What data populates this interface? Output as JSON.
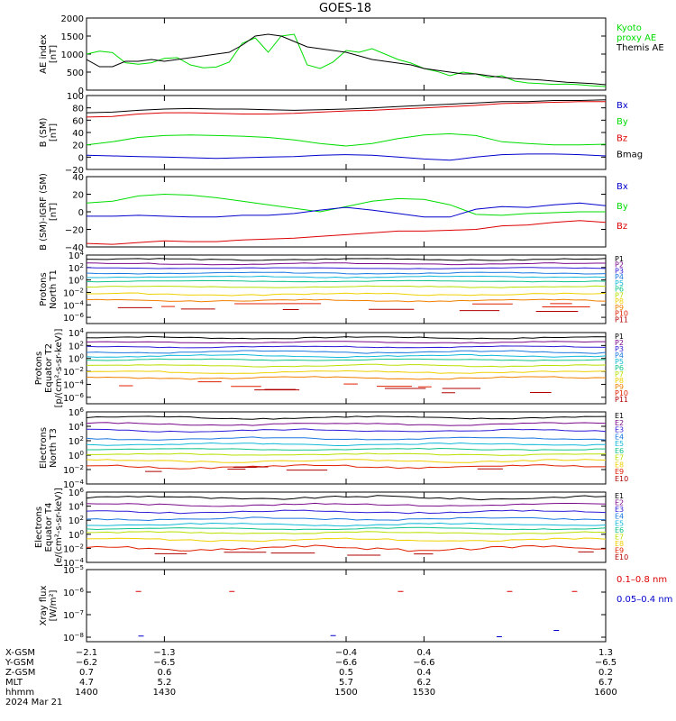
{
  "title": "GOES-18",
  "colors": {
    "black": "#000000",
    "green": "#00dd00",
    "red": "#dd0000",
    "blue": "#0000cc",
    "p1": "#000000",
    "p2": "#7a0a8a",
    "p3": "#2c1ad6",
    "p4": "#1a78e0",
    "p5": "#10b9d9",
    "p6": "#10c48a",
    "p7": "#b8e000",
    "p8": "#f0d000",
    "p9": "#f08000",
    "p10": "#e02000",
    "p11": "#b00000"
  },
  "chart_data": [
    {
      "type": "line",
      "panel": "ae",
      "ylabel": "AE index\n[nT]",
      "ylim": [
        0,
        2000
      ],
      "yticks": [
        "0",
        "500",
        "1000",
        "1500",
        "2000"
      ],
      "yticks_values": [
        0,
        500,
        1000,
        1500,
        2000
      ],
      "legend": [
        {
          "text": "Kyoto\nproxy AE",
          "color": "green"
        },
        {
          "text": "Themis AE",
          "color": "black"
        }
      ],
      "series": [
        {
          "name": "Kyoto proxy AE",
          "color": "green",
          "x": [
            1400,
            1405,
            1410,
            1415,
            1420,
            1425,
            1430,
            1435,
            1440,
            1445,
            1450,
            1455,
            1460,
            1465,
            1470,
            1475,
            1480,
            1485,
            1490,
            1495,
            1500,
            1505,
            1510,
            1515,
            1520,
            1525,
            1530,
            1535,
            1540,
            1545,
            1550,
            1555,
            1560,
            1565,
            1570,
            1575,
            1580,
            1585,
            1590,
            1595,
            1600
          ],
          "y": [
            1000,
            1080,
            1040,
            760,
            720,
            760,
            880,
            900,
            700,
            620,
            640,
            780,
            1300,
            1450,
            1050,
            1500,
            1550,
            700,
            600,
            780,
            1100,
            1050,
            1150,
            1000,
            850,
            750,
            600,
            520,
            400,
            500,
            450,
            350,
            400,
            250,
            200,
            180,
            160,
            170,
            150,
            120,
            100
          ]
        },
        {
          "name": "Themis AE",
          "color": "black",
          "x": [
            1400,
            1405,
            1410,
            1415,
            1420,
            1425,
            1430,
            1435,
            1440,
            1445,
            1450,
            1455,
            1460,
            1465,
            1470,
            1475,
            1480,
            1485,
            1490,
            1495,
            1500,
            1505,
            1510,
            1515,
            1520,
            1525,
            1530,
            1535,
            1540,
            1545,
            1550,
            1555,
            1560,
            1565,
            1570,
            1575,
            1580,
            1585,
            1590,
            1595,
            1600
          ],
          "y": [
            850,
            650,
            650,
            800,
            800,
            850,
            800,
            850,
            900,
            950,
            1000,
            1050,
            1250,
            1500,
            1550,
            1500,
            1350,
            1200,
            1150,
            1100,
            1050,
            950,
            850,
            800,
            750,
            700,
            600,
            550,
            500,
            450,
            450,
            400,
            350,
            320,
            300,
            280,
            250,
            220,
            200,
            180,
            150
          ]
        }
      ]
    },
    {
      "type": "line",
      "panel": "bsm",
      "ylabel": "B (SM)\n[nT]",
      "ylim": [
        -20,
        100
      ],
      "yticks": [
        "−20",
        "0",
        "20",
        "40",
        "60",
        "80",
        "100"
      ],
      "yticks_values": [
        -20,
        0,
        20,
        40,
        60,
        80,
        100
      ],
      "legend": [
        {
          "text": "Bx",
          "color": "blue"
        },
        {
          "text": "By",
          "color": "green"
        },
        {
          "text": "Bz",
          "color": "red"
        },
        {
          "text": "Bmag",
          "color": "black"
        }
      ],
      "series": [
        {
          "name": "Bmag",
          "color": "black",
          "x": [
            1400,
            1410,
            1420,
            1430,
            1440,
            1450,
            1460,
            1470,
            1480,
            1490,
            1500,
            1510,
            1520,
            1530,
            1540,
            1550,
            1560,
            1570,
            1580,
            1590,
            1600
          ],
          "y": [
            72,
            73,
            76,
            78,
            79,
            78,
            78,
            77,
            76,
            77,
            78,
            80,
            82,
            84,
            86,
            88,
            90,
            90,
            92,
            92,
            93
          ]
        },
        {
          "name": "Bz",
          "color": "red",
          "x": [
            1400,
            1410,
            1420,
            1430,
            1440,
            1450,
            1460,
            1470,
            1480,
            1490,
            1500,
            1510,
            1520,
            1530,
            1540,
            1550,
            1560,
            1570,
            1580,
            1590,
            1600
          ],
          "y": [
            65,
            66,
            70,
            72,
            72,
            71,
            70,
            70,
            71,
            73,
            75,
            76,
            78,
            80,
            82,
            84,
            87,
            88,
            89,
            90,
            90
          ]
        },
        {
          "name": "By",
          "color": "green",
          "x": [
            1400,
            1410,
            1420,
            1430,
            1440,
            1450,
            1460,
            1470,
            1480,
            1490,
            1500,
            1510,
            1520,
            1530,
            1540,
            1550,
            1560,
            1570,
            1580,
            1590,
            1600
          ],
          "y": [
            20,
            25,
            32,
            35,
            36,
            35,
            34,
            32,
            28,
            22,
            18,
            22,
            30,
            36,
            38,
            35,
            25,
            22,
            20,
            20,
            21
          ]
        },
        {
          "name": "Bx",
          "color": "blue",
          "x": [
            1400,
            1410,
            1420,
            1430,
            1440,
            1450,
            1460,
            1470,
            1480,
            1490,
            1500,
            1510,
            1520,
            1530,
            1540,
            1550,
            1560,
            1570,
            1580,
            1590,
            1600
          ],
          "y": [
            3,
            2,
            1,
            0,
            -1,
            -2,
            -1,
            0,
            1,
            3,
            4,
            3,
            0,
            -3,
            -5,
            0,
            4,
            5,
            5,
            4,
            2
          ]
        }
      ]
    },
    {
      "type": "line",
      "panel": "bigrf",
      "ylabel": "B (SM)-IGRF (SM)\n[nT]",
      "ylim": [
        -40,
        40
      ],
      "yticks": [
        "−40",
        "−20",
        "0",
        "20",
        "40"
      ],
      "yticks_values": [
        -40,
        -20,
        0,
        20,
        40
      ],
      "legend": [
        {
          "text": "Bx",
          "color": "blue"
        },
        {
          "text": "By",
          "color": "green"
        },
        {
          "text": "Bz",
          "color": "red"
        }
      ],
      "series": [
        {
          "name": "By",
          "color": "green",
          "x": [
            1400,
            1410,
            1420,
            1430,
            1440,
            1450,
            1460,
            1470,
            1480,
            1490,
            1500,
            1510,
            1520,
            1530,
            1540,
            1550,
            1560,
            1570,
            1580,
            1590,
            1600
          ],
          "y": [
            10,
            12,
            18,
            20,
            19,
            16,
            12,
            8,
            4,
            0,
            6,
            12,
            15,
            14,
            8,
            -3,
            -4,
            -2,
            -1,
            0,
            0
          ]
        },
        {
          "name": "Bx",
          "color": "blue",
          "x": [
            1400,
            1410,
            1420,
            1430,
            1440,
            1450,
            1460,
            1470,
            1480,
            1490,
            1500,
            1510,
            1520,
            1530,
            1540,
            1550,
            1560,
            1570,
            1580,
            1590,
            1600
          ],
          "y": [
            -5,
            -5,
            -4,
            -5,
            -6,
            -6,
            -4,
            -4,
            -2,
            2,
            5,
            2,
            -2,
            -6,
            -6,
            3,
            6,
            5,
            8,
            10,
            7
          ]
        },
        {
          "name": "Bz",
          "color": "red",
          "x": [
            1400,
            1410,
            1420,
            1430,
            1440,
            1450,
            1460,
            1470,
            1480,
            1490,
            1500,
            1510,
            1520,
            1530,
            1540,
            1550,
            1560,
            1570,
            1580,
            1590,
            1600
          ],
          "y": [
            -36,
            -37,
            -35,
            -33,
            -34,
            -34,
            -32,
            -31,
            -30,
            -28,
            -26,
            -24,
            -22,
            -22,
            -21,
            -20,
            -16,
            -15,
            -12,
            -10,
            -12
          ]
        }
      ]
    },
    {
      "type": "line",
      "panel": "protons-t1",
      "ylabel": "Protons\nNorth T1",
      "log": true,
      "ylim_exp": [
        -7,
        4
      ],
      "yticks": [
        "10^-6",
        "10^-4",
        "10^-2",
        "10^0",
        "10^2",
        "10^4"
      ],
      "yticks_exp": [
        -6,
        -4,
        -2,
        0,
        2,
        4
      ],
      "legend": [
        {
          "text": "P1",
          "color": "p1"
        },
        {
          "text": "P2",
          "color": "p2"
        },
        {
          "text": "P3",
          "color": "p3"
        },
        {
          "text": "P4",
          "color": "p4"
        },
        {
          "text": "P5",
          "color": "p5"
        },
        {
          "text": "P6",
          "color": "p6"
        },
        {
          "text": "P7",
          "color": "p7"
        },
        {
          "text": "P8",
          "color": "p8"
        },
        {
          "text": "P9",
          "color": "p9"
        },
        {
          "text": "P10",
          "color": "p10"
        },
        {
          "text": "P11",
          "color": "p11"
        }
      ],
      "levels": [
        3.3,
        2.6,
        1.9,
        1.1,
        0.5,
        -0.2,
        -1.1,
        -2.3,
        -3.3,
        -4.0,
        -4.7
      ],
      "wiggle": [
        0.25,
        0.2,
        0.15,
        0.2,
        0.2,
        0.15,
        0.2,
        0.3,
        0.25,
        0,
        0
      ]
    },
    {
      "type": "line",
      "panel": "protons-t2",
      "ylabel": "Protons\nEquator T2\n[p/(cm²-s-sr-keV)]",
      "log": true,
      "ylim_exp": [
        -7,
        4
      ],
      "yticks": [
        "10^-6",
        "10^-4",
        "10^-2",
        "10^0",
        "10^2",
        "10^4"
      ],
      "yticks_exp": [
        -6,
        -4,
        -2,
        0,
        2,
        4
      ],
      "legend": [
        {
          "text": "P1",
          "color": "p1"
        },
        {
          "text": "P2",
          "color": "p2"
        },
        {
          "text": "P3",
          "color": "p3"
        },
        {
          "text": "P4",
          "color": "p4"
        },
        {
          "text": "P5",
          "color": "p5"
        },
        {
          "text": "P6",
          "color": "p6"
        },
        {
          "text": "P7",
          "color": "p7"
        },
        {
          "text": "P8",
          "color": "p8"
        },
        {
          "text": "P9",
          "color": "p9"
        },
        {
          "text": "P10",
          "color": "p10"
        },
        {
          "text": "P11",
          "color": "p11"
        }
      ],
      "levels": [
        3.2,
        2.5,
        1.8,
        1.0,
        0.4,
        -0.2,
        -1.1,
        -2.1,
        -3.0,
        -4.0,
        -5.0
      ],
      "wiggle": [
        0.25,
        0.2,
        0.2,
        0.3,
        0.3,
        0.2,
        0.25,
        0.3,
        0.3,
        0,
        0
      ]
    },
    {
      "type": "line",
      "panel": "electrons-t3",
      "ylabel": "Electrons\nNorth T3",
      "log": true,
      "ylim_exp": [
        -4,
        6
      ],
      "yticks": [
        "10^-4",
        "10^-2",
        "10^0",
        "10^2",
        "10^4",
        "10^6"
      ],
      "yticks_exp": [
        -4,
        -2,
        0,
        2,
        4,
        6
      ],
      "legend": [
        {
          "text": "E1",
          "color": "p1"
        },
        {
          "text": "E2",
          "color": "p2"
        },
        {
          "text": "E3",
          "color": "p3"
        },
        {
          "text": "E4",
          "color": "p4"
        },
        {
          "text": "E5",
          "color": "p5"
        },
        {
          "text": "E6",
          "color": "p6"
        },
        {
          "text": "E7",
          "color": "p7"
        },
        {
          "text": "E8",
          "color": "p8"
        },
        {
          "text": "E9",
          "color": "p10"
        },
        {
          "text": "E10",
          "color": "p11"
        }
      ],
      "levels": [
        5.2,
        4.3,
        3.4,
        2.3,
        1.5,
        0.8,
        0.1,
        -0.8,
        -1.6,
        -1.9
      ],
      "wiggle": [
        0.3,
        0.3,
        0.3,
        0.3,
        0.25,
        0.2,
        0.2,
        0.3,
        0.4,
        0
      ]
    },
    {
      "type": "line",
      "panel": "electrons-t4",
      "ylabel": "Electrons\nEquator T4\n[e/(cm²-s-sr-keV)]",
      "log": true,
      "ylim_exp": [
        -4,
        6
      ],
      "yticks": [
        "10^-4",
        "10^-2",
        "10^0",
        "10^2",
        "10^4",
        "10^6"
      ],
      "yticks_exp": [
        -4,
        -2,
        0,
        2,
        4,
        6
      ],
      "legend": [
        {
          "text": "E1",
          "color": "p1"
        },
        {
          "text": "E2",
          "color": "p2"
        },
        {
          "text": "E3",
          "color": "p3"
        },
        {
          "text": "E4",
          "color": "p4"
        },
        {
          "text": "E5",
          "color": "p5"
        },
        {
          "text": "E6",
          "color": "p6"
        },
        {
          "text": "E7",
          "color": "p7"
        },
        {
          "text": "E8",
          "color": "p8"
        },
        {
          "text": "E9",
          "color": "p10"
        },
        {
          "text": "E10",
          "color": "p11"
        }
      ],
      "levels": [
        5.2,
        4.2,
        3.2,
        2.2,
        1.4,
        0.8,
        0.2,
        -0.8,
        -2.0,
        -2.8
      ],
      "wiggle": [
        0.4,
        0.3,
        0.3,
        0.3,
        0.3,
        0.2,
        0.25,
        0.35,
        0.6,
        0
      ]
    },
    {
      "type": "scatter",
      "panel": "xray",
      "ylabel": "Xray flux\n[W/m²]",
      "log": true,
      "ylim_exp": [
        -8.2,
        -5
      ],
      "yticks": [
        "10^-8",
        "10^-7",
        "10^-6",
        "10^-5"
      ],
      "yticks_exp": [
        -8,
        -7,
        -6,
        -5
      ],
      "legend": [
        {
          "text": "0.1–0.8 nm",
          "color": "red"
        },
        {
          "text": "0.05–0.4 nm",
          "color": "blue"
        }
      ],
      "series": [
        {
          "name": "0.1–0.8 nm",
          "color": "red",
          "x": [
            1420,
            1456,
            1521,
            1563,
            1588
          ],
          "y_exp": [
            -5.97,
            -5.97,
            -5.97,
            -5.97,
            -5.97
          ]
        },
        {
          "name": "0.05–0.4 nm",
          "color": "blue",
          "x": [
            1421,
            1495,
            1559,
            1581
          ],
          "y_exp": [
            -7.95,
            -7.93,
            -7.98,
            -7.7
          ]
        }
      ]
    }
  ],
  "xaxis": {
    "x_values": [
      1400,
      1430,
      1500,
      1530,
      1600
    ],
    "rows": [
      {
        "label": "X-GSM",
        "values": [
          "−2.1",
          "−1.3",
          "−0.4",
          "0.4",
          "1.3"
        ]
      },
      {
        "label": "Y-GSM",
        "values": [
          "−6.2",
          "−6.5",
          "−6.6",
          "−6.6",
          "−6.5"
        ]
      },
      {
        "label": "Z-GSM",
        "values": [
          "0.7",
          "0.6",
          "0.5",
          "0.4",
          "0.2"
        ]
      },
      {
        "label": "MLT",
        "values": [
          "4.7",
          "5.2",
          "5.7",
          "6.2",
          "6.7"
        ]
      },
      {
        "label": "hhmm",
        "values": [
          "1400",
          "1430",
          "1500",
          "1530",
          "1600"
        ]
      }
    ],
    "date": "2024 Mar 21"
  }
}
